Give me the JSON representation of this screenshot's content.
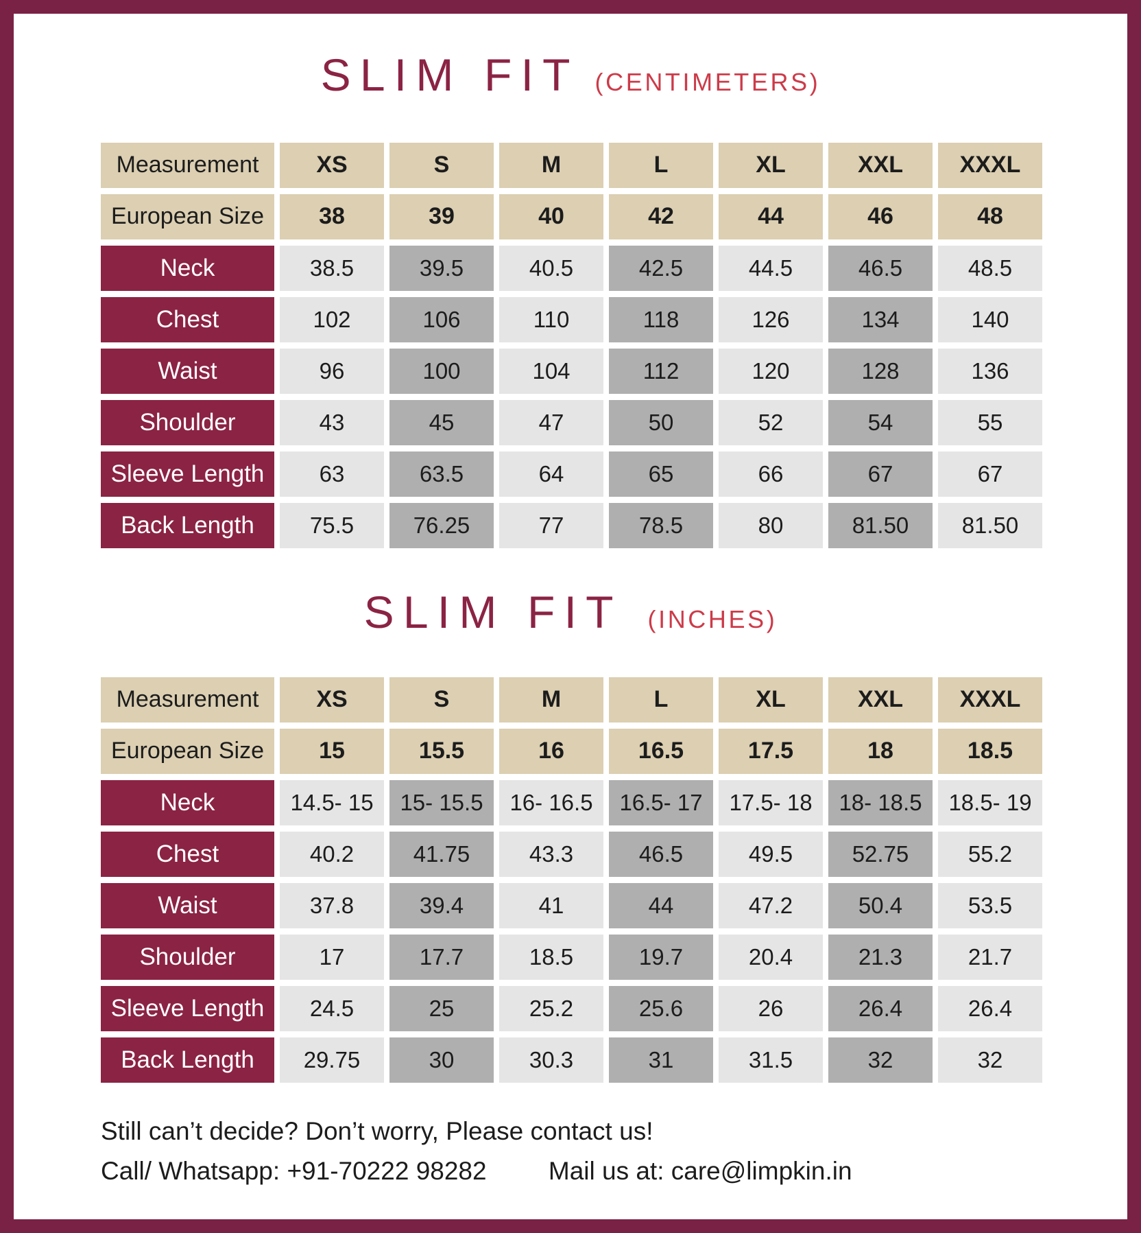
{
  "colors": {
    "border": "#7a2146",
    "maroon": "#8b2344",
    "accent_red": "#cc3b49",
    "tan": "#dccfb2",
    "gray_light": "#e6e5e5",
    "gray_dark": "#b0afaf",
    "text": "#1c1c1c"
  },
  "tables": [
    {
      "title": "SLIM FIT",
      "unit": "(CENTIMETERS)",
      "header": {
        "label": "Measurement",
        "sizes": [
          "XS",
          "S",
          "M",
          "L",
          "XL",
          "XXL",
          "XXXL"
        ]
      },
      "euro": {
        "label": "European Size",
        "values": [
          "38",
          "39",
          "40",
          "42",
          "44",
          "46",
          "48"
        ]
      },
      "rows": [
        {
          "label": "Neck",
          "values": [
            "38.5",
            "39.5",
            "40.5",
            "42.5",
            "44.5",
            "46.5",
            "48.5"
          ]
        },
        {
          "label": "Chest",
          "values": [
            "102",
            "106",
            "110",
            "118",
            "126",
            "134",
            "140"
          ]
        },
        {
          "label": "Waist",
          "values": [
            "96",
            "100",
            "104",
            "112",
            "120",
            "128",
            "136"
          ]
        },
        {
          "label": "Shoulder",
          "values": [
            "43",
            "45",
            "47",
            "50",
            "52",
            "54",
            "55"
          ]
        },
        {
          "label": "Sleeve Length",
          "values": [
            "63",
            "63.5",
            "64",
            "65",
            "66",
            "67",
            "67"
          ]
        },
        {
          "label": "Back Length",
          "values": [
            "75.5",
            "76.25",
            "77",
            "78.5",
            "80",
            "81.50",
            "81.50"
          ]
        }
      ]
    },
    {
      "title": "SLIM FIT",
      "unit": "(INCHES)",
      "header": {
        "label": "Measurement",
        "sizes": [
          "XS",
          "S",
          "M",
          "L",
          "XL",
          "XXL",
          "XXXL"
        ]
      },
      "euro": {
        "label": "European Size",
        "values": [
          "15",
          "15.5",
          "16",
          "16.5",
          "17.5",
          "18",
          "18.5"
        ]
      },
      "rows": [
        {
          "label": "Neck",
          "values": [
            "14.5- 15",
            "15- 15.5",
            "16- 16.5",
            "16.5- 17",
            "17.5- 18",
            "18- 18.5",
            "18.5- 19"
          ]
        },
        {
          "label": "Chest",
          "values": [
            "40.2",
            "41.75",
            "43.3",
            "46.5",
            "49.5",
            "52.75",
            "55.2"
          ]
        },
        {
          "label": "Waist",
          "values": [
            "37.8",
            "39.4",
            "41",
            "44",
            "47.2",
            "50.4",
            "53.5"
          ]
        },
        {
          "label": "Shoulder",
          "values": [
            "17",
            "17.7",
            "18.5",
            "19.7",
            "20.4",
            "21.3",
            "21.7"
          ]
        },
        {
          "label": "Sleeve Length",
          "values": [
            "24.5",
            "25",
            "25.2",
            "25.6",
            "26",
            "26.4",
            "26.4"
          ]
        },
        {
          "label": "Back Length",
          "values": [
            "29.75",
            "30",
            "30.3",
            "31",
            "31.5",
            "32",
            "32"
          ]
        }
      ]
    }
  ],
  "footer": {
    "line1": "Still can’t decide? Don’t worry, Please contact us!",
    "call": "Call/ Whatsapp: +91-70222 98282",
    "mail": "Mail us at: care@limpkin.in"
  }
}
